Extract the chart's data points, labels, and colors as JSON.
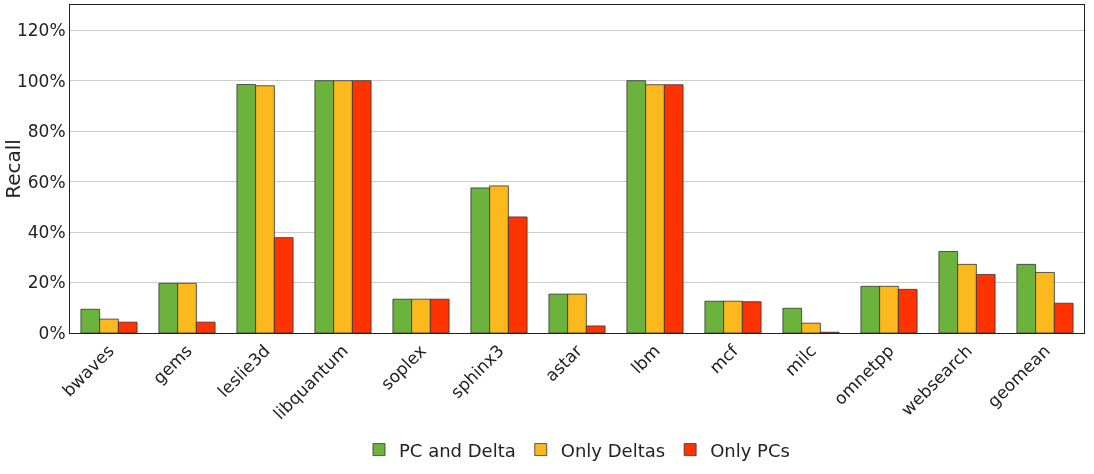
{
  "chart_data": {
    "type": "bar",
    "ylabel": "Recall",
    "categories": [
      "bwaves",
      "gems",
      "leslie3d",
      "libquantum",
      "soplex",
      "sphinx3",
      "astar",
      "lbm",
      "mcf",
      "milc",
      "omnetpp",
      "websearch",
      "geomean"
    ],
    "series": [
      {
        "name": "PC and Delta",
        "color": "#6cb33e",
        "values": [
          9.4,
          19.7,
          98.5,
          100,
          13.4,
          57.5,
          15.4,
          100,
          12.6,
          9.8,
          18.5,
          32.3,
          27.2
        ]
      },
      {
        "name": "Only Deltas",
        "color": "#fbb91e",
        "values": [
          5.5,
          19.7,
          98,
          100,
          13.4,
          58.3,
          15.4,
          98.4,
          12.6,
          3.9,
          18.5,
          27.2,
          24
        ]
      },
      {
        "name": "Only PCs",
        "color": "#ff3300",
        "values": [
          4.3,
          4.3,
          37.8,
          100,
          13.4,
          46,
          2.8,
          98.4,
          12.4,
          0.3,
          17.3,
          23.2,
          11.8
        ]
      }
    ],
    "ylim": [
      0,
      130
    ],
    "yticks": [
      {
        "value": 0,
        "label": "0%"
      },
      {
        "value": 20,
        "label": "20%"
      },
      {
        "value": 40,
        "label": "40%"
      },
      {
        "value": 60,
        "label": "60%"
      },
      {
        "value": 80,
        "label": "80%"
      },
      {
        "value": 100,
        "label": "100%"
      },
      {
        "value": 120,
        "label": "120%"
      }
    ],
    "grid": "y",
    "legend": "bottom"
  }
}
